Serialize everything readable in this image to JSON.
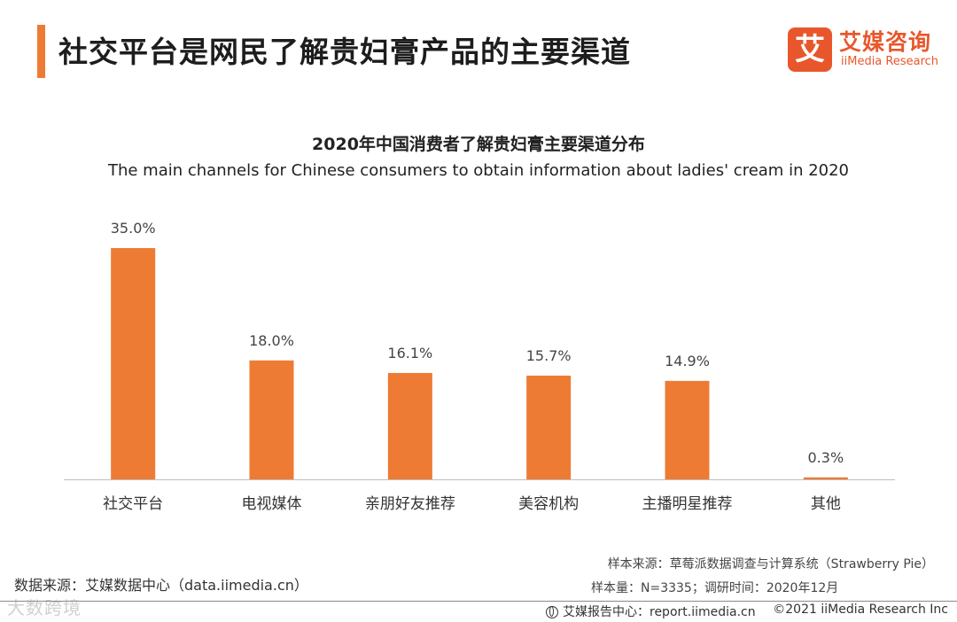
{
  "header": {
    "title": "社交平台是网民了解贵妇膏产品的主要渠道",
    "logo_mark": "艾",
    "logo_cn": "艾媒咨询",
    "logo_en": "iiMedia Research"
  },
  "colors": {
    "accent": "#ee7b34",
    "bar": "#ee7b34",
    "logo": "#e8572b"
  },
  "chart_data": {
    "type": "bar",
    "title": "2020年中国消费者了解贵妇膏主要渠道分布",
    "subtitle": "The main channels for Chinese consumers to obtain information about ladies' cream in 2020",
    "categories": [
      "社交平台",
      "电视媒体",
      "亲朋好友推荐",
      "美容机构",
      "主播明星推荐",
      "其他"
    ],
    "values": [
      35.0,
      18.0,
      16.1,
      15.7,
      14.9,
      0.3
    ],
    "value_labels": [
      "35.0%",
      "18.0%",
      "16.1%",
      "15.7%",
      "14.9%",
      "0.3%"
    ],
    "unit": "%",
    "ylim": [
      0,
      35
    ],
    "xlabel": "",
    "ylabel": "",
    "grid": false,
    "legend": "none"
  },
  "footer": {
    "source": "数据来源：艾媒数据中心（data.iimedia.cn）",
    "sample_source": "样本来源：草莓派数据调查与计算系统（Strawberry Pie）",
    "sample_size": "样本量：N=3335；调研时间：2020年12月",
    "report_center": "艾媒报告中心：report.iimedia.cn",
    "copyright": "©2021  iiMedia Research  Inc",
    "watermark": "大数跨境"
  }
}
